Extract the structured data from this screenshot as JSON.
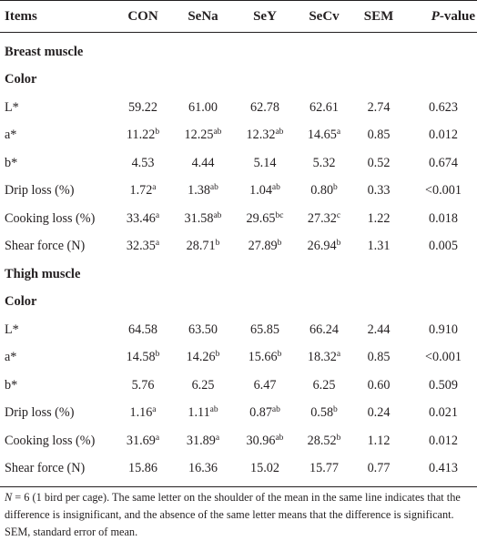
{
  "table": {
    "headers": {
      "items": "Items",
      "con": "CON",
      "sena": "SeNa",
      "sey": "SeY",
      "secv": "SeCv",
      "sem": "SEM",
      "p_prefix": "P",
      "p_suffix": "-value"
    },
    "rows": [
      {
        "type": "section",
        "label": "Breast muscle"
      },
      {
        "type": "section",
        "label": "Color"
      },
      {
        "type": "data",
        "label": "L*",
        "con": "59.22",
        "con_sup": "",
        "sena": "61.00",
        "sena_sup": "",
        "sey": "62.78",
        "sey_sup": "",
        "secv": "62.61",
        "secv_sup": "",
        "sem": "2.74",
        "p": "0.623"
      },
      {
        "type": "data",
        "label": "a*",
        "con": "11.22",
        "con_sup": "b",
        "sena": "12.25",
        "sena_sup": "ab",
        "sey": "12.32",
        "sey_sup": "ab",
        "secv": "14.65",
        "secv_sup": "a",
        "sem": "0.85",
        "p": "0.012"
      },
      {
        "type": "data",
        "label": "b*",
        "con": "4.53",
        "con_sup": "",
        "sena": "4.44",
        "sena_sup": "",
        "sey": "5.14",
        "sey_sup": "",
        "secv": "5.32",
        "secv_sup": "",
        "sem": "0.52",
        "p": "0.674"
      },
      {
        "type": "data",
        "label": "Drip loss (%)",
        "con": "1.72",
        "con_sup": "a",
        "sena": "1.38",
        "sena_sup": "ab",
        "sey": "1.04",
        "sey_sup": "ab",
        "secv": "0.80",
        "secv_sup": "b",
        "sem": "0.33",
        "p": "<0.001"
      },
      {
        "type": "data",
        "label": "Cooking loss (%)",
        "con": "33.46",
        "con_sup": "a",
        "sena": "31.58",
        "sena_sup": "ab",
        "sey": "29.65",
        "sey_sup": "bc",
        "secv": "27.32",
        "secv_sup": "c",
        "sem": "1.22",
        "p": "0.018"
      },
      {
        "type": "data",
        "label": "Shear force (N)",
        "con": "32.35",
        "con_sup": "a",
        "sena": "28.71",
        "sena_sup": "b",
        "sey": "27.89",
        "sey_sup": "b",
        "secv": "26.94",
        "secv_sup": "b",
        "sem": "1.31",
        "p": "0.005"
      },
      {
        "type": "section",
        "label": "Thigh muscle"
      },
      {
        "type": "section",
        "label": "Color"
      },
      {
        "type": "data",
        "label": "L*",
        "con": "64.58",
        "con_sup": "",
        "sena": "63.50",
        "sena_sup": "",
        "sey": "65.85",
        "sey_sup": "",
        "secv": "66.24",
        "secv_sup": "",
        "sem": "2.44",
        "p": "0.910"
      },
      {
        "type": "data",
        "label": "a*",
        "con": "14.58",
        "con_sup": "b",
        "sena": "14.26",
        "sena_sup": "b",
        "sey": "15.66",
        "sey_sup": "b",
        "secv": "18.32",
        "secv_sup": "a",
        "sem": "0.85",
        "p": "<0.001"
      },
      {
        "type": "data",
        "label": "b*",
        "con": "5.76",
        "con_sup": "",
        "sena": "6.25",
        "sena_sup": "",
        "sey": "6.47",
        "sey_sup": "",
        "secv": "6.25",
        "secv_sup": "",
        "sem": "0.60",
        "p": "0.509"
      },
      {
        "type": "data",
        "label": "Drip loss (%)",
        "con": "1.16",
        "con_sup": "a",
        "sena": "1.11",
        "sena_sup": "ab",
        "sey": "0.87",
        "sey_sup": "ab",
        "secv": "0.58",
        "secv_sup": "b",
        "sem": "0.24",
        "p": "0.021"
      },
      {
        "type": "data",
        "label": "Cooking loss (%)",
        "con": "31.69",
        "con_sup": "a",
        "sena": "31.89",
        "sena_sup": "a",
        "sey": "30.96",
        "sey_sup": "ab",
        "secv": "28.52",
        "secv_sup": "b",
        "sem": "1.12",
        "p": "0.012"
      },
      {
        "type": "data",
        "label": "Shear force (N)",
        "con": "15.86",
        "con_sup": "",
        "sena": "16.36",
        "sena_sup": "",
        "sey": "15.02",
        "sey_sup": "",
        "secv": "15.77",
        "secv_sup": "",
        "sem": "0.77",
        "p": "0.413"
      }
    ]
  },
  "footnote": {
    "n_symbol": "N",
    "text": " = 6 (1 bird per cage). The same letter on the shoulder of the mean in the same line indicates that the difference is insignificant, and the absence of the same letter means that the difference is significant. SEM, standard error of mean."
  },
  "colors": {
    "text": "#231f20",
    "rule": "#231f20",
    "background": "#ffffff"
  }
}
